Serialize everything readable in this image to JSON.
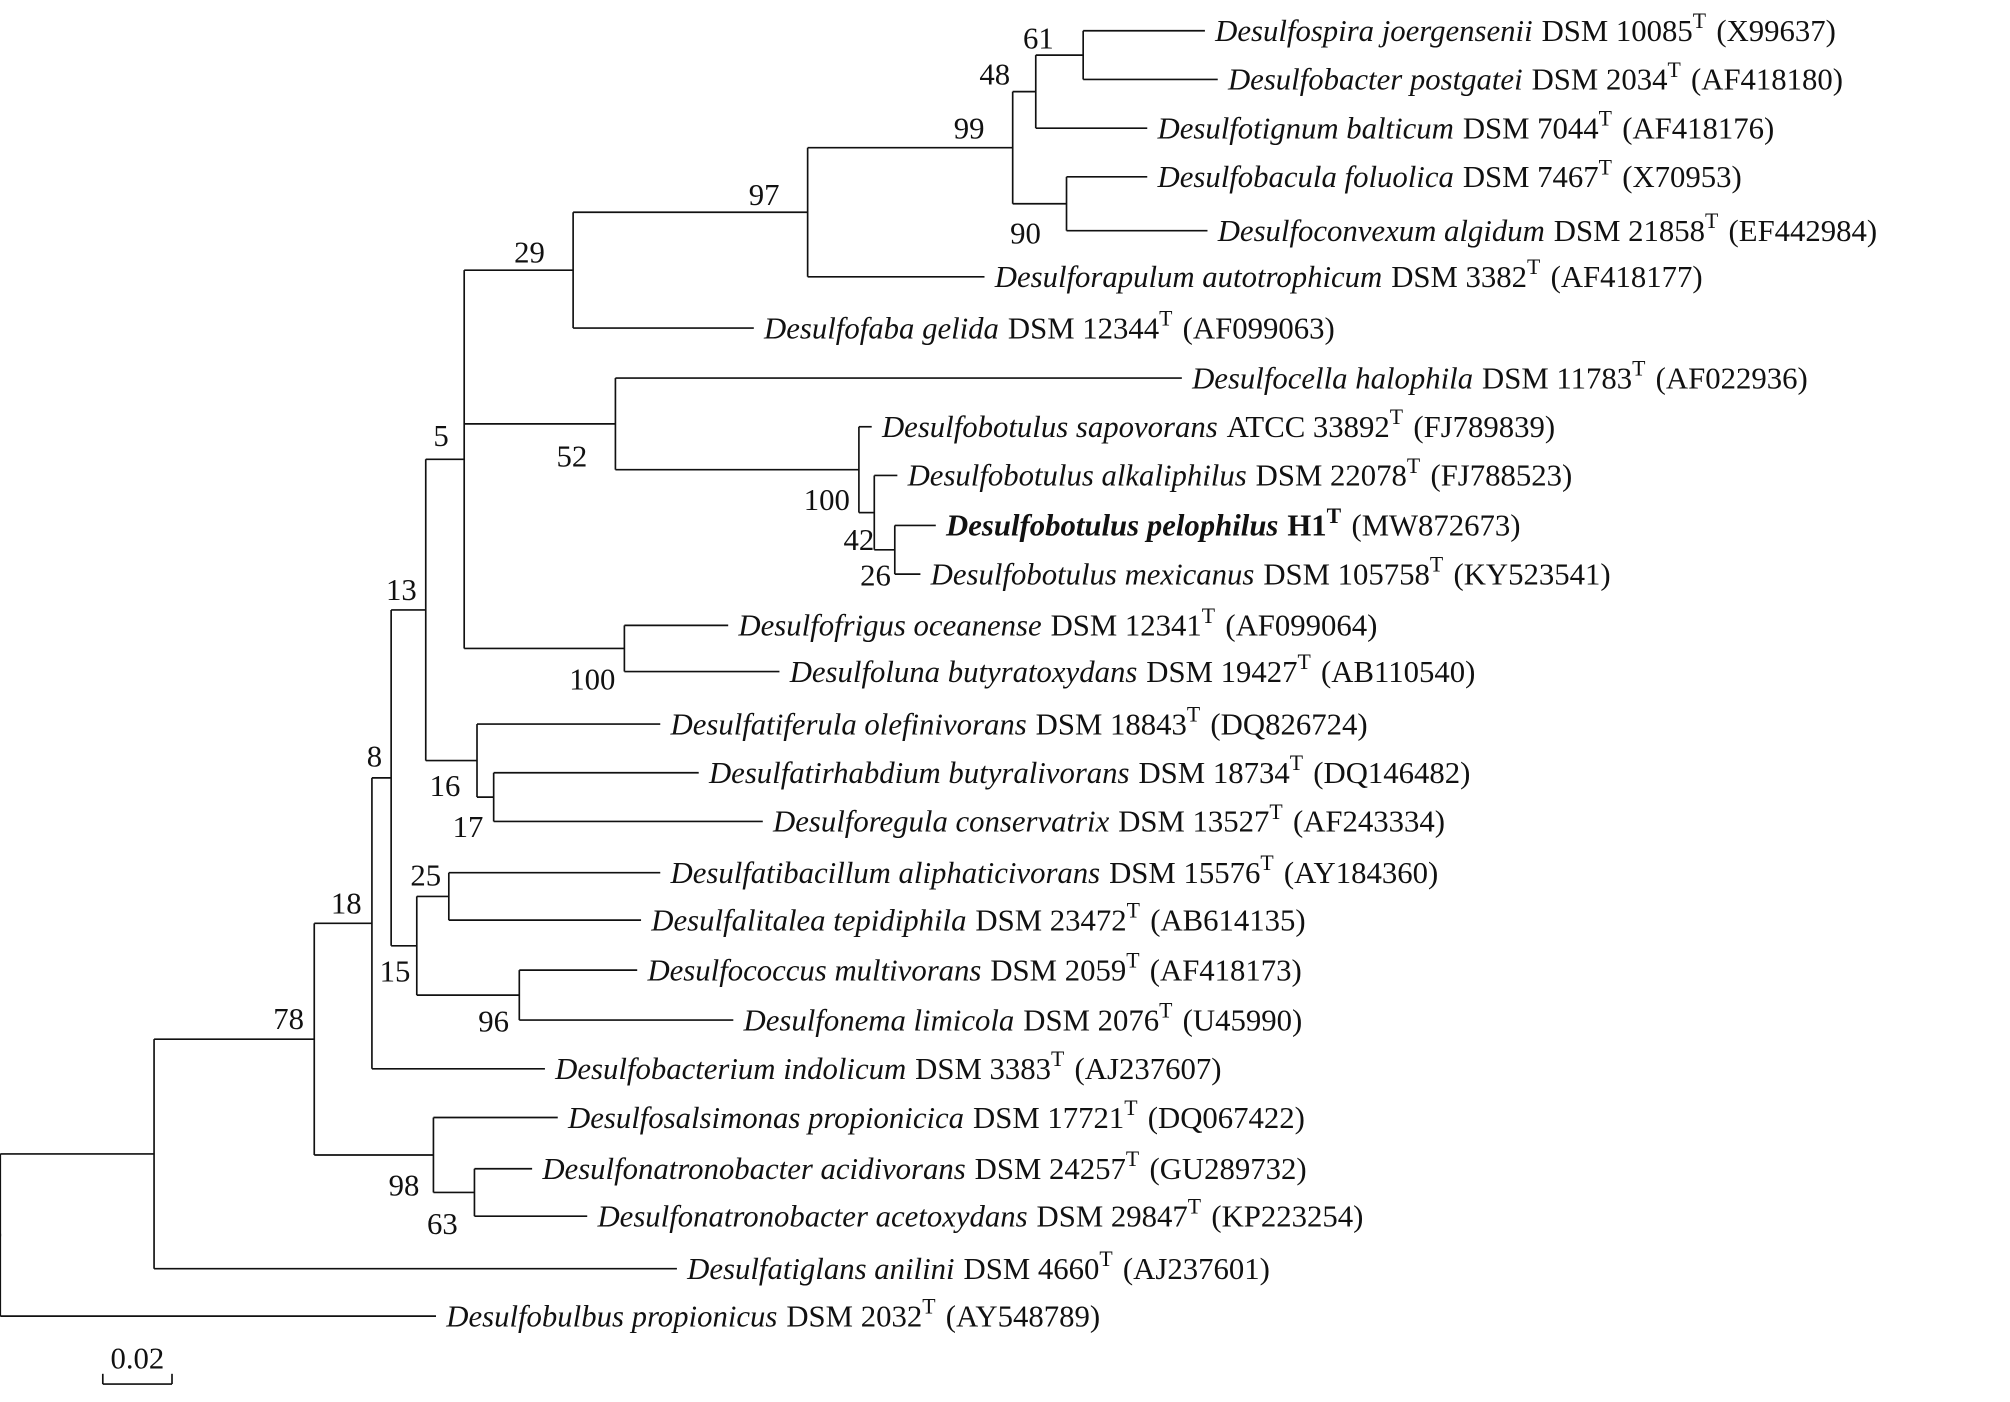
{
  "leaves": [
    {
      "name": "Desulfospira joergensenii",
      "strain": "DSM 10085",
      "superscript": "T",
      "accession": "(X99637)"
    },
    {
      "name": "Desulfobacter postgatei",
      "strain": "DSM 2034",
      "superscript": "T",
      "accession": "(AF418180)"
    },
    {
      "name": "Desulfotignum balticum",
      "strain": "DSM 7044",
      "superscript": "T",
      "accession": "(AF418176)"
    },
    {
      "name": "Desulfobacula foluolica",
      "strain": "DSM 7467",
      "superscript": "T",
      "accession": "(X70953)"
    },
    {
      "name": "Desulfoconvexum algidum",
      "strain": "DSM 21858",
      "superscript": "T",
      "accession": "(EF442984)"
    },
    {
      "name": "Desulforapulum autotrophicum",
      "strain": "DSM 3382",
      "superscript": "T",
      "accession": "(AF418177)"
    },
    {
      "name": "Desulfofaba gelida",
      "strain": "DSM 12344",
      "superscript": "T",
      "accession": "(AF099063)"
    },
    {
      "name": "Desulfocella halophila",
      "strain": "DSM 11783",
      "superscript": "T",
      "accession": "(AF022936)"
    },
    {
      "name": "Desulfobotulus sapovorans",
      "strain": "ATCC 33892",
      "superscript": "T",
      "accession": "(FJ789839)"
    },
    {
      "name": "Desulfobotulus alkaliphilus",
      "strain": "DSM 22078",
      "superscript": "T",
      "accession": "(FJ788523)"
    },
    {
      "name": "Desulfobotulus pelophilus",
      "strain": "H1",
      "superscript": "T",
      "accession": "(MW872673)"
    },
    {
      "name": "Desulfobotulus mexicanus",
      "strain": "DSM 105758",
      "superscript": "T",
      "accession": "(KY523541)"
    },
    {
      "name": "Desulfofrigus oceanense",
      "strain": "DSM 12341",
      "superscript": "T",
      "accession": "(AF099064)"
    },
    {
      "name": "Desulfoluna butyratoxydans",
      "strain": "DSM 19427",
      "superscript": "T",
      "accession": "(AB110540)"
    },
    {
      "name": "Desulfatiferula olefinivorans",
      "strain": "DSM 18843",
      "superscript": "T",
      "accession": "(DQ826724)"
    },
    {
      "name": "Desulfatirhabdium butyralivorans",
      "strain": "DSM 18734",
      "superscript": "T",
      "accession": "(DQ146482)"
    },
    {
      "name": "Desulforegula conservatrix",
      "strain": "DSM 13527",
      "superscript": "T",
      "accession": "(AF243334)"
    },
    {
      "name": "Desulfatibacillum aliphaticivorans",
      "strain": "DSM 15576",
      "superscript": "T",
      "accession": "(AY184360)"
    },
    {
      "name": "Desulfalitalea tepidiphila",
      "strain": "DSM 23472",
      "superscript": "T",
      "accession": "(AB614135)"
    },
    {
      "name": "Desulfococcus multivorans",
      "strain": "DSM 2059",
      "superscript": "T",
      "accession": "(AF418173)"
    },
    {
      "name": "Desulfonema limicola",
      "strain": "DSM 2076",
      "superscript": "T",
      "accession": "(U45990)"
    },
    {
      "name": "Desulfobacterium indolicum",
      "strain": "DSM 3383",
      "superscript": "T",
      "accession": "(AJ237607)"
    },
    {
      "name": "Desulfosalsimonas propionicica",
      "strain": "DSM 17721",
      "superscript": "T",
      "accession": "(DQ067422)"
    },
    {
      "name": "Desulfonatronobacter acidivorans",
      "strain": "DSM 24257",
      "superscript": "T",
      "accession": "(GU289732)"
    },
    {
      "name": "Desulfonatronobacter acetoxydans",
      "strain": "DSM 29847",
      "superscript": "T",
      "accession": "(KP223254)"
    },
    {
      "name": "Desulfatiglans anilini",
      "strain": "DSM 4660",
      "superscript": "T",
      "accession": "(AJ237601)"
    },
    {
      "name": "Desulfobulbus propionicus",
      "strain": "DSM 2032",
      "superscript": "T",
      "accession": "(AY548789)"
    }
  ],
  "nodes": [
    {
      "bootstrap": 61
    },
    {
      "bootstrap": 48
    },
    {
      "bootstrap": 99
    },
    {
      "bootstrap": 90
    },
    {
      "bootstrap": 97
    },
    {
      "bootstrap": 29
    },
    {
      "bootstrap": 5
    },
    {
      "bootstrap": 52
    },
    {
      "bootstrap": 100
    },
    {
      "bootstrap": 42
    },
    {
      "bootstrap": 26
    },
    {
      "bootstrap": 13
    },
    {
      "bootstrap": 100
    },
    {
      "bootstrap": 16
    },
    {
      "bootstrap": 17
    },
    {
      "bootstrap": 8
    },
    {
      "bootstrap": 25
    },
    {
      "bootstrap": 15
    },
    {
      "bootstrap": 96
    },
    {
      "bootstrap": 18
    },
    {
      "bootstrap": 78
    },
    {
      "bootstrap": 98
    },
    {
      "bootstrap": 63
    }
  ],
  "scale_bar": {
    "label": "0.02"
  }
}
